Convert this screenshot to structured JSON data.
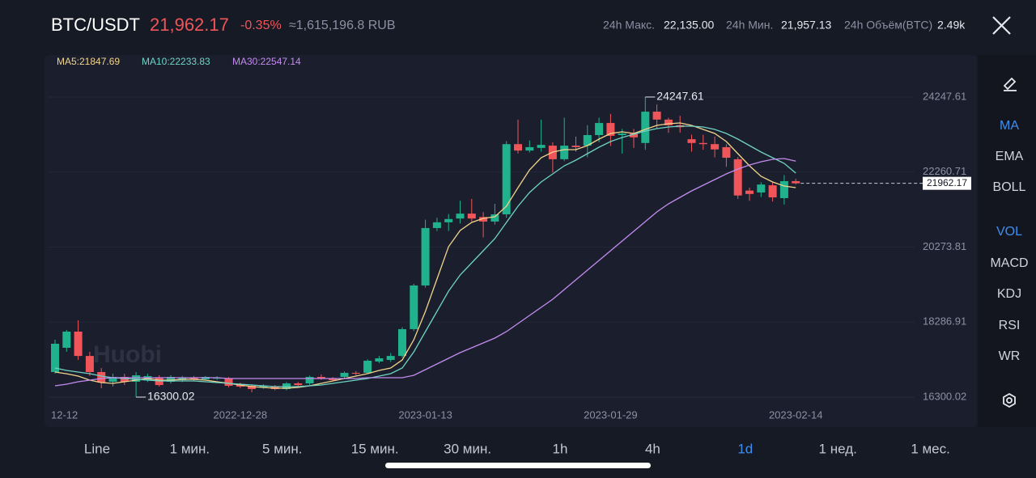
{
  "header": {
    "pair": "BTC/USDT",
    "price": "21,962.17",
    "change": "-0.35%",
    "converted": "≈1,615,196.8 RUB",
    "stats": [
      {
        "label": "24h Макс.",
        "value": "22,135.00"
      },
      {
        "label": "24h Мин.",
        "value": "21,957.13"
      },
      {
        "label": "24h Объём(BTC)",
        "value": "2.49k"
      }
    ]
  },
  "watermark": "Huobi",
  "indicators": {
    "items": [
      "MA",
      "EMA",
      "BOLL",
      "VOL",
      "MACD",
      "KDJ",
      "RSI",
      "WR"
    ],
    "active": [
      0,
      3
    ]
  },
  "intervals": {
    "items": [
      "Line",
      "1 мин.",
      "5 мин.",
      "15 мин.",
      "30 мин.",
      "1h",
      "4h",
      "1d",
      "1 нед.",
      "1 мес."
    ],
    "active": 7
  },
  "chart_data": {
    "type": "candlestick",
    "up_color": "#20b28d",
    "down_color": "#f0555a",
    "categories": [
      "12-12",
      null,
      null,
      null,
      null,
      null,
      null,
      null,
      null,
      null,
      null,
      null,
      null,
      null,
      null,
      null,
      "2022-12-28",
      null,
      null,
      null,
      null,
      null,
      null,
      null,
      null,
      null,
      null,
      null,
      null,
      null,
      null,
      null,
      "2023-01-13",
      null,
      null,
      null,
      null,
      null,
      null,
      null,
      null,
      null,
      null,
      null,
      null,
      null,
      null,
      null,
      "2023-01-29",
      null,
      null,
      null,
      null,
      null,
      null,
      null,
      null,
      null,
      null,
      null,
      null,
      null,
      null,
      null,
      "2023-02-14"
    ],
    "open": [
      16964,
      17607,
      18035,
      17390,
      16964,
      16707,
      16835,
      16707,
      16750,
      16814,
      16707,
      16750,
      16814,
      16771,
      16790,
      16793,
      16643,
      16600,
      16560,
      16578,
      16514,
      16664,
      16664,
      16835,
      16790,
      16835,
      16943,
      16943,
      17243,
      17285,
      17390,
      18100,
      19257,
      20778,
      20930,
      21030,
      21160,
      21070,
      20950,
      21140,
      23000,
      22830,
      22900,
      22960,
      22600,
      22960,
      22960,
      23240,
      23560,
      23240,
      23280,
      23030,
      23860,
      23650,
      23500,
      23130,
      23030,
      23000,
      22920,
      22600,
      21770,
      21720,
      21910,
      21570,
      22020
    ],
    "high": [
      17820,
      18080,
      18335,
      17500,
      17070,
      16920,
      16920,
      16964,
      16920,
      16880,
      16880,
      16860,
      16860,
      16860,
      16850,
      16830,
      16680,
      16640,
      16640,
      16620,
      16700,
      16700,
      16870,
      16900,
      16830,
      16980,
      16990,
      17300,
      17390,
      17470,
      18150,
      19300,
      21000,
      21050,
      21150,
      21500,
      21550,
      21200,
      21420,
      23080,
      23650,
      23100,
      23650,
      23050,
      23700,
      23200,
      23500,
      23700,
      23800,
      23400,
      23400,
      24247.61,
      24050,
      23700,
      23750,
      23250,
      23250,
      23200,
      23000,
      22660,
      21850,
      21990,
      22000,
      22180,
      22080
    ],
    "low": [
      16920,
      17500,
      17285,
      16860,
      16535,
      16580,
      16620,
      16300.02,
      16700,
      16580,
      16660,
      16700,
      16730,
      16750,
      16760,
      16560,
      16540,
      16430,
      16520,
      16480,
      16480,
      16580,
      16620,
      16760,
      16720,
      16800,
      16880,
      16920,
      17200,
      17230,
      17350,
      18050,
      19200,
      20700,
      20700,
      20900,
      20950,
      20530,
      20870,
      21050,
      22750,
      22780,
      22800,
      22250,
      22550,
      22800,
      22650,
      23050,
      22950,
      22750,
      22900,
      22850,
      23400,
      23300,
      23300,
      22800,
      22850,
      22650,
      22400,
      21550,
      21500,
      21600,
      21480,
      21400,
      21930
    ],
    "close": [
      17714,
      18035,
      17390,
      16964,
      16685,
      16835,
      16707,
      16878,
      16857,
      16620,
      16835,
      16814,
      16771,
      16835,
      16810,
      16600,
      16578,
      16514,
      16600,
      16514,
      16664,
      16620,
      16835,
      16790,
      16750,
      16943,
      16920,
      17264,
      17328,
      17390,
      18100,
      19257,
      20778,
      20930,
      21016,
      21160,
      21030,
      20950,
      21140,
      23000,
      22830,
      22920,
      22980,
      22600,
      22960,
      22920,
      23240,
      23560,
      23220,
      23280,
      23180,
      23860,
      23650,
      23500,
      23450,
      23030,
      23000,
      22860,
      22640,
      21640,
      21680,
      21930,
      21590,
      22020,
      21962.17
    ],
    "series": [
      {
        "name": "MA5:21847.69",
        "color": "#f2d48c",
        "values": [
          16964,
          16920,
          16857,
          16750,
          16686,
          16664,
          16707,
          16750,
          16793,
          16750,
          16750,
          16771,
          16771,
          16750,
          16707,
          16664,
          16621,
          16578,
          16557,
          16536,
          16536,
          16557,
          16600,
          16664,
          16728,
          16793,
          16857,
          16921,
          17007,
          17071,
          17285,
          17821,
          18571,
          19427,
          20284,
          20712,
          20927,
          21034,
          21077,
          21355,
          21848,
          22319,
          22640,
          22790,
          22855,
          22855,
          22962,
          23133,
          23283,
          23326,
          23283,
          23390,
          23497,
          23540,
          23562,
          23497,
          23390,
          23283,
          23069,
          22748,
          22426,
          22148,
          21998,
          21891,
          21847.69
        ]
      },
      {
        "name": "MA10:22233.83",
        "color": "#6fd3c4",
        "values": [
          17071,
          17007,
          16964,
          16921,
          16857,
          16814,
          16793,
          16771,
          16750,
          16728,
          16728,
          16728,
          16728,
          16707,
          16686,
          16664,
          16643,
          16621,
          16600,
          16578,
          16578,
          16578,
          16600,
          16621,
          16664,
          16707,
          16750,
          16793,
          16857,
          16921,
          17071,
          17500,
          18035,
          18571,
          19106,
          19534,
          19856,
          20177,
          20498,
          20927,
          21355,
          21719,
          21998,
          22212,
          22426,
          22576,
          22748,
          22919,
          23069,
          23176,
          23262,
          23347,
          23412,
          23454,
          23476,
          23476,
          23454,
          23390,
          23283,
          23133,
          22962,
          22790,
          22640,
          22490,
          22233.83
        ]
      },
      {
        "name": "MA30:22547.14",
        "color": "#c48bf0",
        "values": [
          16600,
          16643,
          16707,
          16750,
          16793,
          16814,
          16814,
          16814,
          16814,
          16814,
          16814,
          16814,
          16814,
          16814,
          16814,
          16793,
          16793,
          16793,
          16793,
          16793,
          16793,
          16793,
          16793,
          16793,
          16793,
          16793,
          16793,
          16814,
          16814,
          16814,
          16814,
          16878,
          17028,
          17178,
          17328,
          17478,
          17607,
          17735,
          17864,
          18035,
          18250,
          18464,
          18678,
          18892,
          19149,
          19406,
          19663,
          19920,
          20177,
          20434,
          20691,
          20948,
          21205,
          21419,
          21590,
          21762,
          21912,
          22062,
          22212,
          22340,
          22447,
          22533,
          22597,
          22619,
          22547.14
        ]
      }
    ],
    "ylim": [
      16000,
      25200
    ],
    "yticks": [
      24247.61,
      22260.71,
      20273.81,
      18286.91,
      16300.02
    ],
    "grid": true
  }
}
